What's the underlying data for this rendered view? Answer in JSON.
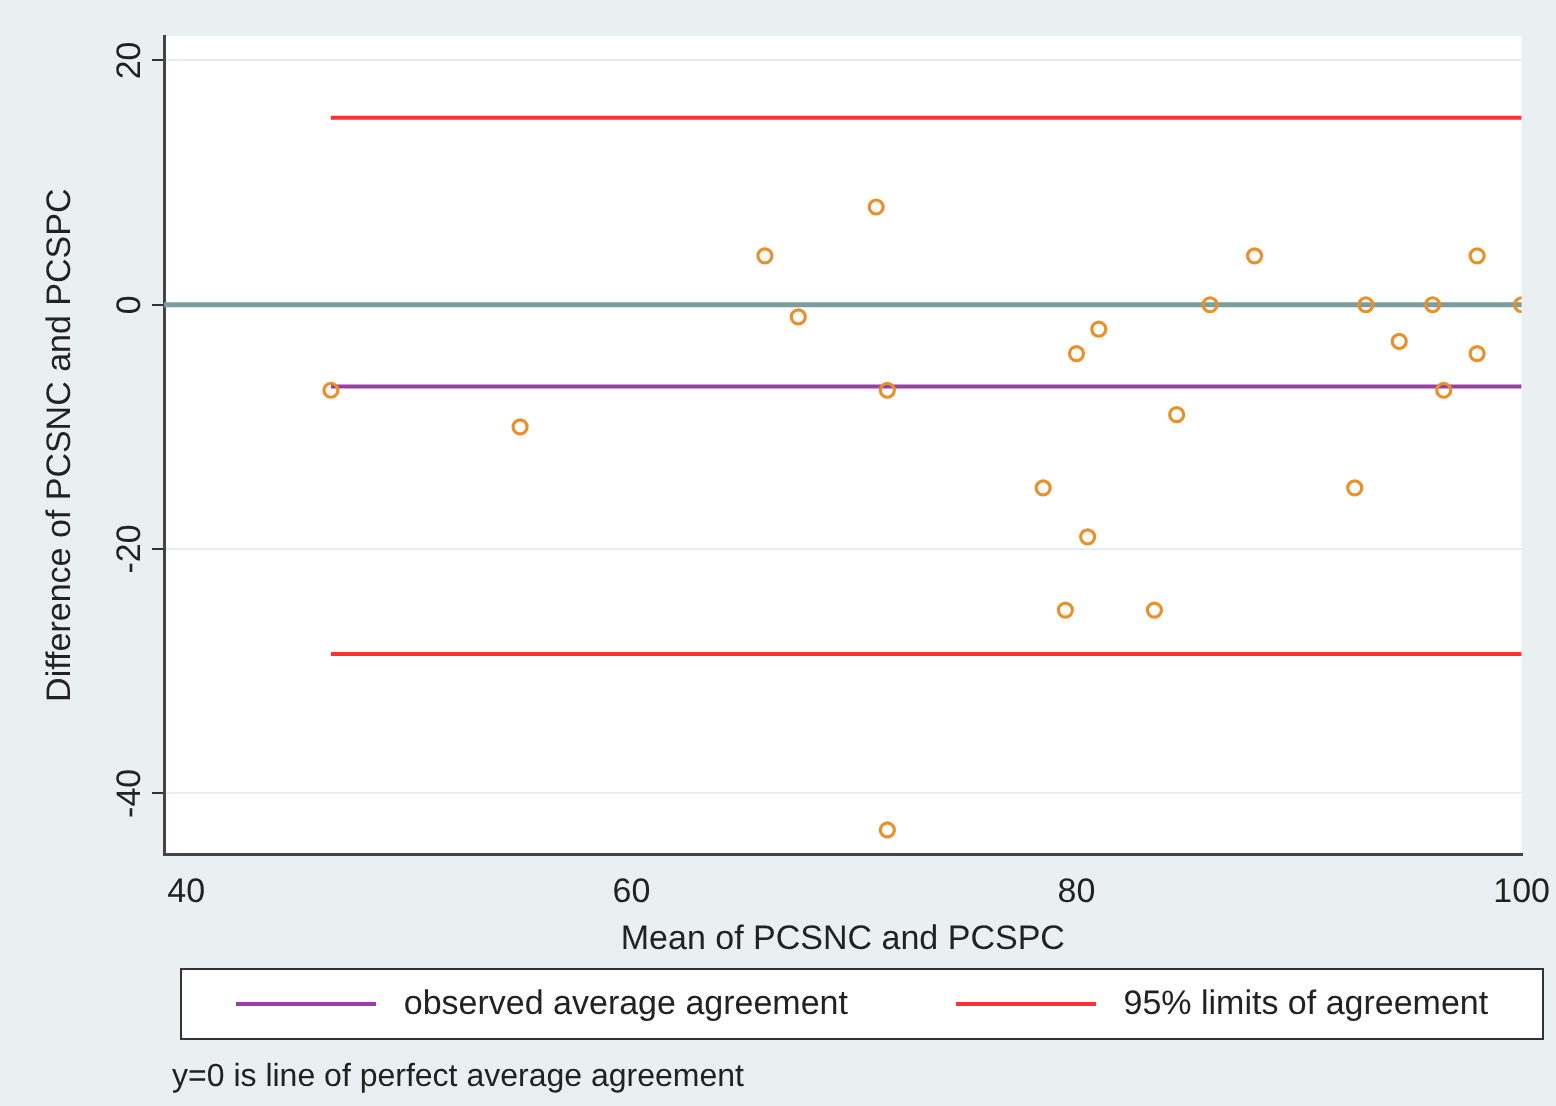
{
  "chart_data": {
    "type": "scatter",
    "xlabel": "Mean of PCSNC and PCSPC",
    "ylabel": "Difference of PCSNC and PCSPC",
    "xlim": [
      39,
      100
    ],
    "xticks": [
      40,
      60,
      80,
      100
    ],
    "ylim": [
      -45,
      22
    ],
    "yticks": [
      -40,
      -20,
      0,
      20
    ],
    "grid": "y",
    "legend": "bottom",
    "series": [
      {
        "marker": "circle",
        "color": "#e8902a",
        "x": [
          46.5,
          55,
          66,
          67.5,
          71,
          71.5,
          71.5,
          78.5,
          79.5,
          80,
          80.5,
          81,
          83.5,
          84.5,
          86,
          88,
          92.5,
          93,
          94.5,
          96,
          96.5,
          98,
          98,
          100
        ],
        "values": [
          -7,
          -10,
          4,
          -1,
          8,
          -7,
          -43,
          -15,
          -25,
          -4,
          -19,
          -2,
          -25,
          -9,
          0,
          4,
          -15,
          0,
          -3,
          0,
          -7,
          4,
          -4,
          0
        ]
      },
      {
        "type": "line",
        "name": "observed average agreement",
        "color": "#9b3fa8",
        "x": [
          46.5,
          100
        ],
        "values": [
          -6.7,
          -6.7
        ]
      },
      {
        "type": "line",
        "name": "95% limits of agreement",
        "color": "#ff3030",
        "x": [
          46.5,
          100
        ],
        "values": [
          15.3,
          15.3
        ]
      },
      {
        "type": "line",
        "color": "#ff3030",
        "x": [
          46.5,
          100
        ],
        "values": [
          -28.6,
          -28.6
        ]
      }
    ],
    "ref_lines": [
      {
        "axis": "y",
        "value": 0,
        "color": "#7a9e9f"
      }
    ],
    "annotations": [
      "y=0 is line of perfect average agreement"
    ]
  }
}
